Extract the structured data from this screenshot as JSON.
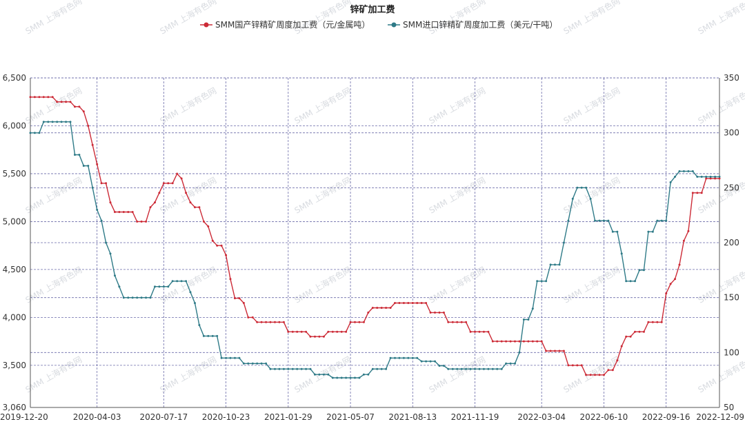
{
  "chart_data": {
    "type": "line",
    "title": "锌矿加工费",
    "legend_position": "top-center",
    "watermark": "SMM 上海有色网",
    "grid": true,
    "x_ticks": [
      "2019-12-20",
      "2020-04-03",
      "2020-07-17",
      "2020-10-23",
      "2021-01-29",
      "2021-05-07",
      "2021-08-13",
      "2021-11-19",
      "2022-03-04",
      "2022-06-10",
      "2022-09-16",
      "2022-12-09"
    ],
    "y_left_ticks": [
      "3,060",
      "3,500",
      "4,000",
      "4,500",
      "5,000",
      "5,500",
      "6,000",
      "6,500"
    ],
    "y_right_ticks": [
      "50",
      "100",
      "150",
      "200",
      "250",
      "300",
      "350"
    ],
    "y_left_lim": [
      3060,
      6500
    ],
    "y_right_lim": [
      50,
      350
    ],
    "colors": {
      "domestic": "#cc2a36",
      "imported": "#2e7a87"
    },
    "series": [
      {
        "name": "SMM国产锌精矿周度加工费（元/金属吨）",
        "axis": "left",
        "color": "#cc2a36",
        "points": [
          [
            "2019-12-20",
            6300
          ],
          [
            "2020-01-10",
            6300
          ],
          [
            "2020-01-31",
            6250
          ],
          [
            "2020-02-28",
            6200
          ],
          [
            "2020-03-13",
            6150
          ],
          [
            "2020-03-20",
            6000
          ],
          [
            "2020-03-27",
            5800
          ],
          [
            "2020-04-03",
            5600
          ],
          [
            "2020-04-10",
            5400
          ],
          [
            "2020-04-24",
            5200
          ],
          [
            "2020-05-01",
            5100
          ],
          [
            "2020-05-29",
            5100
          ],
          [
            "2020-06-05",
            5000
          ],
          [
            "2020-06-19",
            5000
          ],
          [
            "2020-06-26",
            5150
          ],
          [
            "2020-07-03",
            5200
          ],
          [
            "2020-07-10",
            5300
          ],
          [
            "2020-07-17",
            5400
          ],
          [
            "2020-07-31",
            5400
          ],
          [
            "2020-08-07",
            5500
          ],
          [
            "2020-08-14",
            5450
          ],
          [
            "2020-08-21",
            5300
          ],
          [
            "2020-08-28",
            5200
          ],
          [
            "2020-09-04",
            5150
          ],
          [
            "2020-09-18",
            5000
          ],
          [
            "2020-09-25",
            4950
          ],
          [
            "2020-10-02",
            4800
          ],
          [
            "2020-10-09",
            4750
          ],
          [
            "2020-10-23",
            4650
          ],
          [
            "2020-10-30",
            4400
          ],
          [
            "2020-11-06",
            4200
          ],
          [
            "2020-11-20",
            4150
          ],
          [
            "2020-11-27",
            4000
          ],
          [
            "2020-12-04",
            4000
          ],
          [
            "2020-12-11",
            3950
          ],
          [
            "2021-01-22",
            3950
          ],
          [
            "2021-01-29",
            3850
          ],
          [
            "2021-02-26",
            3850
          ],
          [
            "2021-03-05",
            3800
          ],
          [
            "2021-03-19",
            3800
          ],
          [
            "2021-03-26",
            3800
          ],
          [
            "2021-04-02",
            3850
          ],
          [
            "2021-04-30",
            3850
          ],
          [
            "2021-05-07",
            3950
          ],
          [
            "2021-05-21",
            3950
          ],
          [
            "2021-06-04",
            4050
          ],
          [
            "2021-06-11",
            4100
          ],
          [
            "2021-07-09",
            4100
          ],
          [
            "2021-07-16",
            4150
          ],
          [
            "2021-09-03",
            4150
          ],
          [
            "2021-09-10",
            4050
          ],
          [
            "2021-10-01",
            4050
          ],
          [
            "2021-10-08",
            3950
          ],
          [
            "2021-11-05",
            3950
          ],
          [
            "2021-11-12",
            3850
          ],
          [
            "2021-12-10",
            3850
          ],
          [
            "2021-12-17",
            3750
          ],
          [
            "2022-03-04",
            3750
          ],
          [
            "2022-03-11",
            3650
          ],
          [
            "2022-04-08",
            3650
          ],
          [
            "2022-04-15",
            3500
          ],
          [
            "2022-05-06",
            3500
          ],
          [
            "2022-05-13",
            3400
          ],
          [
            "2022-06-10",
            3400
          ],
          [
            "2022-06-17",
            3450
          ],
          [
            "2022-07-01",
            3550
          ],
          [
            "2022-07-08",
            3700
          ],
          [
            "2022-07-15",
            3800
          ],
          [
            "2022-07-29",
            3850
          ],
          [
            "2022-08-19",
            3950
          ],
          [
            "2022-09-09",
            3950
          ],
          [
            "2022-09-16",
            4250
          ],
          [
            "2022-09-23",
            4350
          ],
          [
            "2022-09-30",
            4400
          ],
          [
            "2022-10-07",
            4550
          ],
          [
            "2022-10-14",
            4800
          ],
          [
            "2022-10-21",
            4900
          ],
          [
            "2022-10-28",
            5300
          ],
          [
            "2022-11-11",
            5300
          ],
          [
            "2022-11-18",
            5450
          ],
          [
            "2022-12-09",
            5450
          ]
        ]
      },
      {
        "name": "SMM进口锌精矿周度加工费（美元/干吨）",
        "axis": "right",
        "color": "#2e7a87",
        "points": [
          [
            "2019-12-20",
            300
          ],
          [
            "2020-01-03",
            300
          ],
          [
            "2020-01-10",
            310
          ],
          [
            "2020-02-21",
            310
          ],
          [
            "2020-02-28",
            280
          ],
          [
            "2020-03-06",
            280
          ],
          [
            "2020-03-13",
            270
          ],
          [
            "2020-03-27",
            250
          ],
          [
            "2020-04-03",
            230
          ],
          [
            "2020-04-10",
            220
          ],
          [
            "2020-04-17",
            200
          ],
          [
            "2020-04-24",
            190
          ],
          [
            "2020-05-01",
            170
          ],
          [
            "2020-05-08",
            160
          ],
          [
            "2020-05-15",
            150
          ],
          [
            "2020-06-26",
            150
          ],
          [
            "2020-07-03",
            160
          ],
          [
            "2020-07-24",
            160
          ],
          [
            "2020-07-31",
            165
          ],
          [
            "2020-08-21",
            165
          ],
          [
            "2020-08-28",
            155
          ],
          [
            "2020-09-04",
            145
          ],
          [
            "2020-09-11",
            125
          ],
          [
            "2020-09-18",
            115
          ],
          [
            "2020-10-09",
            115
          ],
          [
            "2020-10-16",
            95
          ],
          [
            "2020-11-13",
            95
          ],
          [
            "2020-11-20",
            90
          ],
          [
            "2020-12-25",
            90
          ],
          [
            "2021-01-01",
            85
          ],
          [
            "2021-03-05",
            85
          ],
          [
            "2021-03-12",
            80
          ],
          [
            "2021-04-02",
            80
          ],
          [
            "2021-04-09",
            77
          ],
          [
            "2021-05-21",
            77
          ],
          [
            "2021-05-28",
            80
          ],
          [
            "2021-06-11",
            85
          ],
          [
            "2021-07-02",
            85
          ],
          [
            "2021-07-09",
            95
          ],
          [
            "2021-08-20",
            95
          ],
          [
            "2021-08-27",
            92
          ],
          [
            "2021-09-17",
            92
          ],
          [
            "2021-09-24",
            88
          ],
          [
            "2021-10-08",
            85
          ],
          [
            "2021-12-31",
            85
          ],
          [
            "2022-01-07",
            90
          ],
          [
            "2022-01-21",
            90
          ],
          [
            "2022-01-28",
            100
          ],
          [
            "2022-02-04",
            130
          ],
          [
            "2022-02-11",
            130
          ],
          [
            "2022-02-18",
            140
          ],
          [
            "2022-02-25",
            165
          ],
          [
            "2022-03-11",
            165
          ],
          [
            "2022-03-18",
            180
          ],
          [
            "2022-04-01",
            180
          ],
          [
            "2022-04-08",
            200
          ],
          [
            "2022-04-15",
            220
          ],
          [
            "2022-04-22",
            240
          ],
          [
            "2022-04-29",
            250
          ],
          [
            "2022-05-13",
            250
          ],
          [
            "2022-05-20",
            240
          ],
          [
            "2022-05-27",
            220
          ],
          [
            "2022-06-17",
            220
          ],
          [
            "2022-06-24",
            210
          ],
          [
            "2022-07-08",
            190
          ],
          [
            "2022-07-15",
            165
          ],
          [
            "2022-07-29",
            165
          ],
          [
            "2022-08-05",
            175
          ],
          [
            "2022-08-12",
            175
          ],
          [
            "2022-08-19",
            210
          ],
          [
            "2022-08-26",
            210
          ],
          [
            "2022-09-02",
            220
          ],
          [
            "2022-09-16",
            220
          ],
          [
            "2022-09-23",
            255
          ],
          [
            "2022-09-30",
            260
          ],
          [
            "2022-10-07",
            265
          ],
          [
            "2022-10-28",
            265
          ],
          [
            "2022-11-04",
            260
          ],
          [
            "2022-12-09",
            260
          ]
        ]
      }
    ]
  }
}
